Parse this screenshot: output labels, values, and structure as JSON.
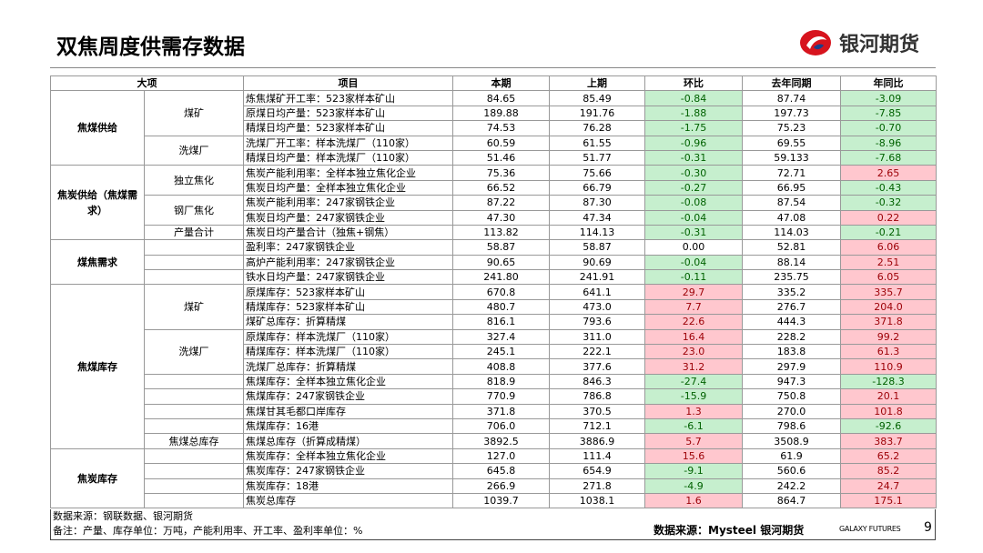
{
  "header": {
    "title": "双焦周度供需存数据",
    "logo_text": "银河期货"
  },
  "table": {
    "header": [
      "大项",
      "项目",
      "本期",
      "上期",
      "环比",
      "去年同期",
      "年同比"
    ],
    "sections": [
      {
        "name": "焦煤供给",
        "subs": [
          {
            "name": "煤矿",
            "rows": [
              [
                "炼焦煤矿开工率：523家样本矿山",
                "84.65",
                "85.49",
                "-0.84",
                "87.74",
                "-3.09"
              ],
              [
                "原煤日均产量：523家样本矿山",
                "189.88",
                "191.76",
                "-1.88",
                "197.73",
                "-7.85"
              ],
              [
                "精煤日均产量：523家样本矿山",
                "74.53",
                "76.28",
                "-1.75",
                "75.23",
                "-0.70"
              ]
            ]
          },
          {
            "name": "洗煤厂",
            "rows": [
              [
                "洗煤厂开工率：样本洗煤厂（110家）",
                "60.59",
                "61.55",
                "-0.96",
                "69.55",
                "-8.96"
              ],
              [
                "精煤日均产量：样本洗煤厂（110家）",
                "51.46",
                "51.77",
                "-0.31",
                "59.133",
                "-7.68"
              ]
            ]
          }
        ]
      },
      {
        "name": "焦炭供给（焦煤需求）",
        "subs": [
          {
            "name": "独立焦化",
            "rows": [
              [
                "焦炭产能利用率：全样本独立焦化企业",
                "75.36",
                "75.66",
                "-0.30",
                "72.71",
                "2.65"
              ],
              [
                "焦炭日均产量：全样本独立焦化企业",
                "66.52",
                "66.79",
                "-0.27",
                "66.95",
                "-0.43"
              ]
            ]
          },
          {
            "name": "钢厂焦化",
            "rows": [
              [
                "焦炭产能利用率：247家钢铁企业",
                "87.22",
                "87.30",
                "-0.08",
                "87.54",
                "-0.32"
              ],
              [
                "焦炭日均产量：247家钢铁企业",
                "47.30",
                "47.34",
                "-0.04",
                "47.08",
                "0.22"
              ]
            ]
          },
          {
            "name": "产量合计",
            "rows": [
              [
                "焦炭日均产量合计（独焦+钢焦）",
                "113.82",
                "114.13",
                "-0.31",
                "114.03",
                "-0.21"
              ]
            ]
          }
        ]
      },
      {
        "name": "煤焦需求",
        "subs": [
          {
            "rows": [
              [
                "盈利率：247家钢铁企业",
                "58.87",
                "58.87",
                "0.00",
                "52.81",
                "6.06"
              ],
              [
                "高炉产能利用率：247家钢铁企业",
                "90.65",
                "90.69",
                "-0.04",
                "88.14",
                "2.51"
              ],
              [
                "铁水日均产量：247家钢铁企业",
                "241.80",
                "241.91",
                "-0.11",
                "235.75",
                "6.05"
              ]
            ]
          }
        ]
      },
      {
        "name": "焦煤库存",
        "subs": [
          {
            "name": "煤矿",
            "rows": [
              [
                "原煤库存：523家样本矿山",
                "670.8",
                "641.1",
                "29.7",
                "335.2",
                "335.7"
              ],
              [
                "精煤库存：523家样本矿山",
                "480.7",
                "473.0",
                "7.7",
                "276.7",
                "204.0"
              ],
              [
                "煤矿总库存：折算精煤",
                "816.1",
                "793.6",
                "22.6",
                "444.3",
                "371.8"
              ]
            ]
          },
          {
            "name": "洗煤厂",
            "rows": [
              [
                "原煤库存：样本洗煤厂（110家）",
                "327.4",
                "311.0",
                "16.4",
                "228.2",
                "99.2"
              ],
              [
                "精煤库存：样本洗煤厂（110家）",
                "245.1",
                "222.1",
                "23.0",
                "183.8",
                "61.3"
              ],
              [
                "洗煤厂总库存：折算精煤",
                "408.8",
                "377.6",
                "31.2",
                "297.9",
                "110.9"
              ]
            ]
          },
          {
            "rows": [
              [
                "焦煤库存：全样本独立焦化企业",
                "818.9",
                "846.3",
                "-27.4",
                "947.3",
                "-128.3"
              ],
              [
                "焦煤库存：247家钢铁企业",
                "770.9",
                "786.8",
                "-15.9",
                "750.8",
                "20.1"
              ],
              [
                "焦煤甘其毛都口岸库存",
                "371.8",
                "370.5",
                "1.3",
                "270.0",
                "101.8"
              ],
              [
                "焦煤库存：16港",
                "706.0",
                "712.1",
                "-6.1",
                "798.6",
                "-92.6"
              ]
            ]
          },
          {
            "name": "焦煤总库存",
            "rows": [
              [
                "焦煤总库存（折算成精煤）",
                "3892.5",
                "3886.9",
                "5.7",
                "3508.9",
                "383.7"
              ]
            ]
          }
        ]
      },
      {
        "name": "焦炭库存",
        "subs": [
          {
            "rows": [
              [
                "焦炭库存：全样本独立焦化企业",
                "127.0",
                "111.4",
                "15.6",
                "61.9",
                "65.2"
              ],
              [
                "焦炭库存：247家钢铁企业",
                "645.8",
                "654.9",
                "-9.1",
                "560.6",
                "85.2"
              ],
              [
                "焦炭库存：18港",
                "266.9",
                "271.8",
                "-4.9",
                "242.2",
                "24.7"
              ],
              [
                "焦炭总库存",
                "1039.7",
                "1038.1",
                "1.6",
                "864.7",
                "175.1"
              ]
            ]
          }
        ]
      }
    ]
  },
  "footer": {
    "source": "数据来源：钢联数据、银河期货",
    "note": "备注：产量、库存单位：万吨，产能利用率、开工率、盈利率单位：%",
    "source2": "数据来源：Mysteel 银河期货",
    "brand": "GALAXY FUTURES",
    "page": "9"
  }
}
